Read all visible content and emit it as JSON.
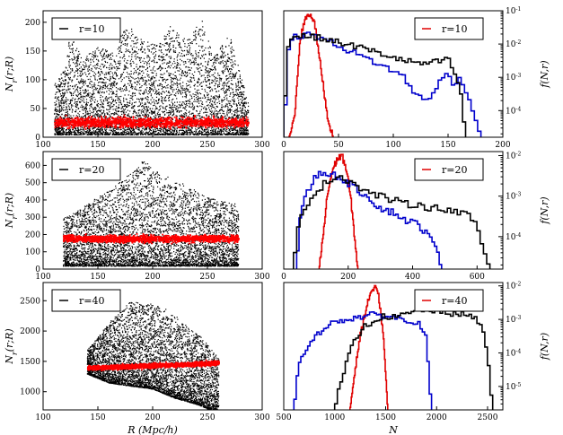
{
  "chart_data": [
    {
      "id": "left-top",
      "type": "scatter",
      "legend": "r=10",
      "xlim": [
        100,
        300
      ],
      "ylim": [
        0,
        220
      ],
      "xticks": [
        100,
        150,
        200,
        250,
        300
      ],
      "yticks": [
        0,
        50,
        100,
        150,
        200
      ],
      "ylabel": "N_r(r;R)",
      "xlabel": "",
      "colors": {
        "scatter": "#000000",
        "band": "#ff0000"
      },
      "scatter": {
        "x_range": [
          110,
          287
        ],
        "baseline": 5,
        "envelope": [
          [
            110,
            95
          ],
          [
            120,
            120
          ],
          [
            125,
            205
          ],
          [
            135,
            135
          ],
          [
            150,
            160
          ],
          [
            165,
            145
          ],
          [
            175,
            200
          ],
          [
            190,
            170
          ],
          [
            205,
            160
          ],
          [
            215,
            195
          ],
          [
            230,
            170
          ],
          [
            245,
            205
          ],
          [
            255,
            140
          ],
          [
            270,
            180
          ],
          [
            280,
            110
          ],
          [
            287,
            60
          ]
        ]
      },
      "band": {
        "x_range": [
          110,
          287
        ],
        "center": 27,
        "spread": 9
      }
    },
    {
      "id": "left-mid",
      "type": "scatter",
      "legend": "r=20",
      "xlim": [
        100,
        300
      ],
      "ylim": [
        0,
        680
      ],
      "xticks": [
        100,
        150,
        200,
        250,
        300
      ],
      "yticks": [
        0,
        100,
        200,
        300,
        400,
        500,
        600
      ],
      "ylabel": "N_r(r;R)",
      "xlabel": "",
      "colors": {
        "scatter": "#000000",
        "band": "#ff0000"
      },
      "scatter": {
        "x_range": [
          118,
          278
        ],
        "baseline": 20,
        "envelope": [
          [
            118,
            300
          ],
          [
            130,
            340
          ],
          [
            145,
            400
          ],
          [
            165,
            480
          ],
          [
            180,
            560
          ],
          [
            190,
            640
          ],
          [
            205,
            560
          ],
          [
            220,
            520
          ],
          [
            235,
            470
          ],
          [
            250,
            420
          ],
          [
            262,
            400
          ],
          [
            275,
            380
          ],
          [
            278,
            320
          ]
        ]
      },
      "band": {
        "x_range": [
          118,
          278
        ],
        "center": 180,
        "spread": 22
      }
    },
    {
      "id": "left-bot",
      "type": "scatter",
      "legend": "r=40",
      "xlim": [
        100,
        300
      ],
      "ylim": [
        700,
        2800
      ],
      "xticks": [
        100,
        150,
        200,
        250,
        300
      ],
      "yticks": [
        1000,
        1500,
        2000,
        2500
      ],
      "ylabel": "N_r(r;R)",
      "xlabel": "R (Mpc/h)",
      "colors": {
        "scatter": "#000000",
        "band": "#ff0000"
      },
      "scatter": {
        "x_range": [
          140,
          260
        ],
        "lower": [
          [
            140,
            1300
          ],
          [
            160,
            1150
          ],
          [
            180,
            1100
          ],
          [
            200,
            1050
          ],
          [
            220,
            900
          ],
          [
            240,
            800
          ],
          [
            260,
            650
          ]
        ],
        "upper": [
          [
            140,
            1700
          ],
          [
            160,
            2150
          ],
          [
            180,
            2500
          ],
          [
            200,
            2450
          ],
          [
            215,
            2350
          ],
          [
            230,
            2100
          ],
          [
            245,
            1900
          ],
          [
            260,
            1550
          ]
        ]
      },
      "band": {
        "x_range": [
          140,
          260
        ],
        "center": 1400,
        "spread": 40,
        "slope": 0.7
      }
    },
    {
      "id": "right-top",
      "type": "line",
      "legend": "r=10",
      "xlim": [
        0,
        200
      ],
      "ylim_log": [
        -4.8,
        -1
      ],
      "xticks": [
        0,
        50,
        100,
        150,
        200
      ],
      "ytick_exponents": [
        -4,
        -3,
        -2,
        -1
      ],
      "ylabel": "f(N,r)",
      "xlabel": "",
      "series": [
        {
          "name": "red",
          "color": "#e00000",
          "points": [
            [
              5,
              -4.8
            ],
            [
              10,
              -4.2
            ],
            [
              13,
              -2.8
            ],
            [
              15,
              -1.9
            ],
            [
              18,
              -1.4
            ],
            [
              22,
              -1.1
            ],
            [
              25,
              -1.15
            ],
            [
              28,
              -1.3
            ],
            [
              30,
              -1.8
            ],
            [
              33,
              -2.5
            ],
            [
              36,
              -3.2
            ],
            [
              40,
              -4.2
            ],
            [
              45,
              -4.8
            ]
          ]
        },
        {
          "name": "blue",
          "color": "#0000cc",
          "points": [
            [
              0,
              -4.8
            ],
            [
              2,
              -3.5
            ],
            [
              4,
              -2.2
            ],
            [
              6,
              -1.9
            ],
            [
              10,
              -1.8
            ],
            [
              20,
              -1.7
            ],
            [
              30,
              -1.75
            ],
            [
              40,
              -1.9
            ],
            [
              60,
              -2.2
            ],
            [
              80,
              -2.5
            ],
            [
              100,
              -2.8
            ],
            [
              110,
              -3.0
            ],
            [
              120,
              -3.5
            ],
            [
              130,
              -3.7
            ],
            [
              140,
              -3.3
            ],
            [
              145,
              -3.0
            ],
            [
              150,
              -2.9
            ],
            [
              155,
              -3.3
            ],
            [
              160,
              -3.0
            ],
            [
              165,
              -3.2
            ],
            [
              170,
              -3.8
            ],
            [
              175,
              -4.2
            ],
            [
              180,
              -4.8
            ]
          ]
        },
        {
          "name": "black",
          "color": "#000000",
          "points": [
            [
              0,
              -4.8
            ],
            [
              2,
              -3.0
            ],
            [
              4,
              -2.0
            ],
            [
              8,
              -1.8
            ],
            [
              15,
              -1.75
            ],
            [
              30,
              -1.8
            ],
            [
              50,
              -1.95
            ],
            [
              70,
              -2.1
            ],
            [
              90,
              -2.3
            ],
            [
              110,
              -2.5
            ],
            [
              130,
              -2.6
            ],
            [
              145,
              -2.5
            ],
            [
              150,
              -2.45
            ],
            [
              155,
              -2.8
            ],
            [
              160,
              -3.2
            ],
            [
              163,
              -3.8
            ],
            [
              166,
              -4.8
            ]
          ]
        }
      ]
    },
    {
      "id": "right-mid",
      "type": "line",
      "legend": "r=20",
      "xlim": [
        0,
        680
      ],
      "ylim_log": [
        -4.8,
        -1.9
      ],
      "xticks": [
        0,
        200,
        400,
        600
      ],
      "ytick_exponents": [
        -4,
        -3,
        -2
      ],
      "ylabel": "f(N,r)",
      "xlabel": "",
      "series": [
        {
          "name": "red",
          "color": "#e00000",
          "points": [
            [
              110,
              -4.8
            ],
            [
              125,
              -3.8
            ],
            [
              135,
              -3.0
            ],
            [
              150,
              -2.4
            ],
            [
              165,
              -2.1
            ],
            [
              180,
              -2.0
            ],
            [
              190,
              -2.2
            ],
            [
              200,
              -2.6
            ],
            [
              210,
              -3.2
            ],
            [
              220,
              -4.0
            ],
            [
              230,
              -4.8
            ]
          ]
        },
        {
          "name": "blue",
          "color": "#0000cc",
          "points": [
            [
              40,
              -4.8
            ],
            [
              50,
              -3.6
            ],
            [
              60,
              -3.2
            ],
            [
              80,
              -2.8
            ],
            [
              100,
              -2.5
            ],
            [
              130,
              -2.4
            ],
            [
              160,
              -2.5
            ],
            [
              190,
              -2.6
            ],
            [
              220,
              -2.8
            ],
            [
              260,
              -3.0
            ],
            [
              300,
              -3.3
            ],
            [
              340,
              -3.4
            ],
            [
              380,
              -3.6
            ],
            [
              420,
              -3.7
            ],
            [
              450,
              -4.0
            ],
            [
              470,
              -4.2
            ],
            [
              490,
              -4.8
            ]
          ]
        },
        {
          "name": "black",
          "color": "#000000",
          "points": [
            [
              30,
              -4.8
            ],
            [
              40,
              -4.0
            ],
            [
              60,
              -3.3
            ],
            [
              100,
              -2.9
            ],
            [
              140,
              -2.6
            ],
            [
              180,
              -2.5
            ],
            [
              220,
              -2.7
            ],
            [
              260,
              -2.9
            ],
            [
              300,
              -3.0
            ],
            [
              340,
              -3.1
            ],
            [
              380,
              -3.2
            ],
            [
              420,
              -3.2
            ],
            [
              460,
              -3.3
            ],
            [
              500,
              -3.3
            ],
            [
              540,
              -3.4
            ],
            [
              580,
              -3.5
            ],
            [
              600,
              -3.8
            ],
            [
              620,
              -4.3
            ],
            [
              640,
              -4.8
            ]
          ]
        }
      ]
    },
    {
      "id": "right-bot",
      "type": "line",
      "legend": "r=40",
      "xlim": [
        500,
        2650
      ],
      "ylim_log": [
        -5.7,
        -1.9
      ],
      "xticks": [
        500,
        1000,
        1500,
        2000,
        2500
      ],
      "ytick_exponents": [
        -5,
        -4,
        -3,
        -2
      ],
      "ylabel": "f(N,r)",
      "xlabel": "N",
      "series": [
        {
          "name": "red",
          "color": "#e00000",
          "points": [
            [
              1150,
              -5.7
            ],
            [
              1200,
              -4.5
            ],
            [
              1250,
              -3.5
            ],
            [
              1300,
              -2.8
            ],
            [
              1350,
              -2.2
            ],
            [
              1400,
              -2.05
            ],
            [
              1430,
              -2.3
            ],
            [
              1460,
              -3.0
            ],
            [
              1490,
              -4.0
            ],
            [
              1520,
              -5.7
            ]
          ]
        },
        {
          "name": "blue",
          "color": "#0000cc",
          "points": [
            [
              600,
              -5.7
            ],
            [
              650,
              -4.3
            ],
            [
              700,
              -4.0
            ],
            [
              750,
              -3.8
            ],
            [
              800,
              -3.6
            ],
            [
              850,
              -3.4
            ],
            [
              900,
              -3.2
            ],
            [
              1000,
              -3.1
            ],
            [
              1100,
              -3.0
            ],
            [
              1200,
              -2.95
            ],
            [
              1300,
              -2.9
            ],
            [
              1400,
              -2.85
            ],
            [
              1500,
              -2.9
            ],
            [
              1600,
              -2.95
            ],
            [
              1700,
              -3.0
            ],
            [
              1800,
              -3.1
            ],
            [
              1850,
              -3.2
            ],
            [
              1900,
              -3.6
            ],
            [
              1950,
              -5.7
            ]
          ]
        },
        {
          "name": "black",
          "color": "#000000",
          "points": [
            [
              1000,
              -5.7
            ],
            [
              1050,
              -5.0
            ],
            [
              1100,
              -4.5
            ],
            [
              1150,
              -4.0
            ],
            [
              1200,
              -3.6
            ],
            [
              1300,
              -3.2
            ],
            [
              1400,
              -3.0
            ],
            [
              1500,
              -2.9
            ],
            [
              1600,
              -2.95
            ],
            [
              1700,
              -2.85
            ],
            [
              1800,
              -2.75
            ],
            [
              1900,
              -2.7
            ],
            [
              2000,
              -2.75
            ],
            [
              2100,
              -2.85
            ],
            [
              2200,
              -2.8
            ],
            [
              2300,
              -2.9
            ],
            [
              2400,
              -3.0
            ],
            [
              2450,
              -3.3
            ],
            [
              2500,
              -4.0
            ],
            [
              2550,
              -5.7
            ]
          ]
        }
      ]
    }
  ]
}
